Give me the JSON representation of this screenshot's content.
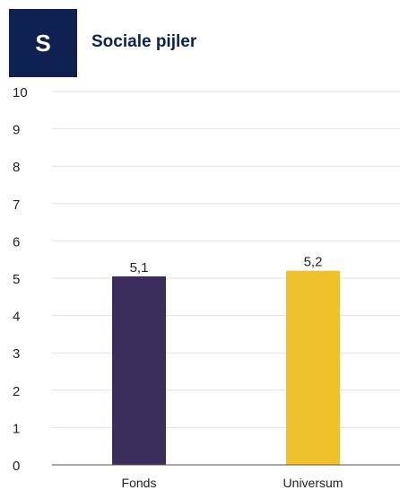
{
  "header": {
    "badge_letter": "S",
    "title": "Sociale pijler"
  },
  "colors": {
    "badge_bg": "#0f2150",
    "title_text": "#0f2150",
    "gridline": "#e2e2e2",
    "axis": "#555555"
  },
  "chart_data": {
    "type": "bar",
    "title": "",
    "xlabel": "",
    "ylabel": "",
    "categories": [
      "Fonds",
      "Universum"
    ],
    "values": [
      5.05,
      5.2
    ],
    "data_labels": [
      "5,1",
      "5,2"
    ],
    "bar_colors": [
      "#3b2e5d",
      "#efc12b"
    ],
    "ylim": [
      0,
      10
    ],
    "yticks": [
      0,
      1,
      2,
      3,
      4,
      5,
      6,
      7,
      8,
      9,
      10
    ],
    "grid": true,
    "legend": "none"
  }
}
